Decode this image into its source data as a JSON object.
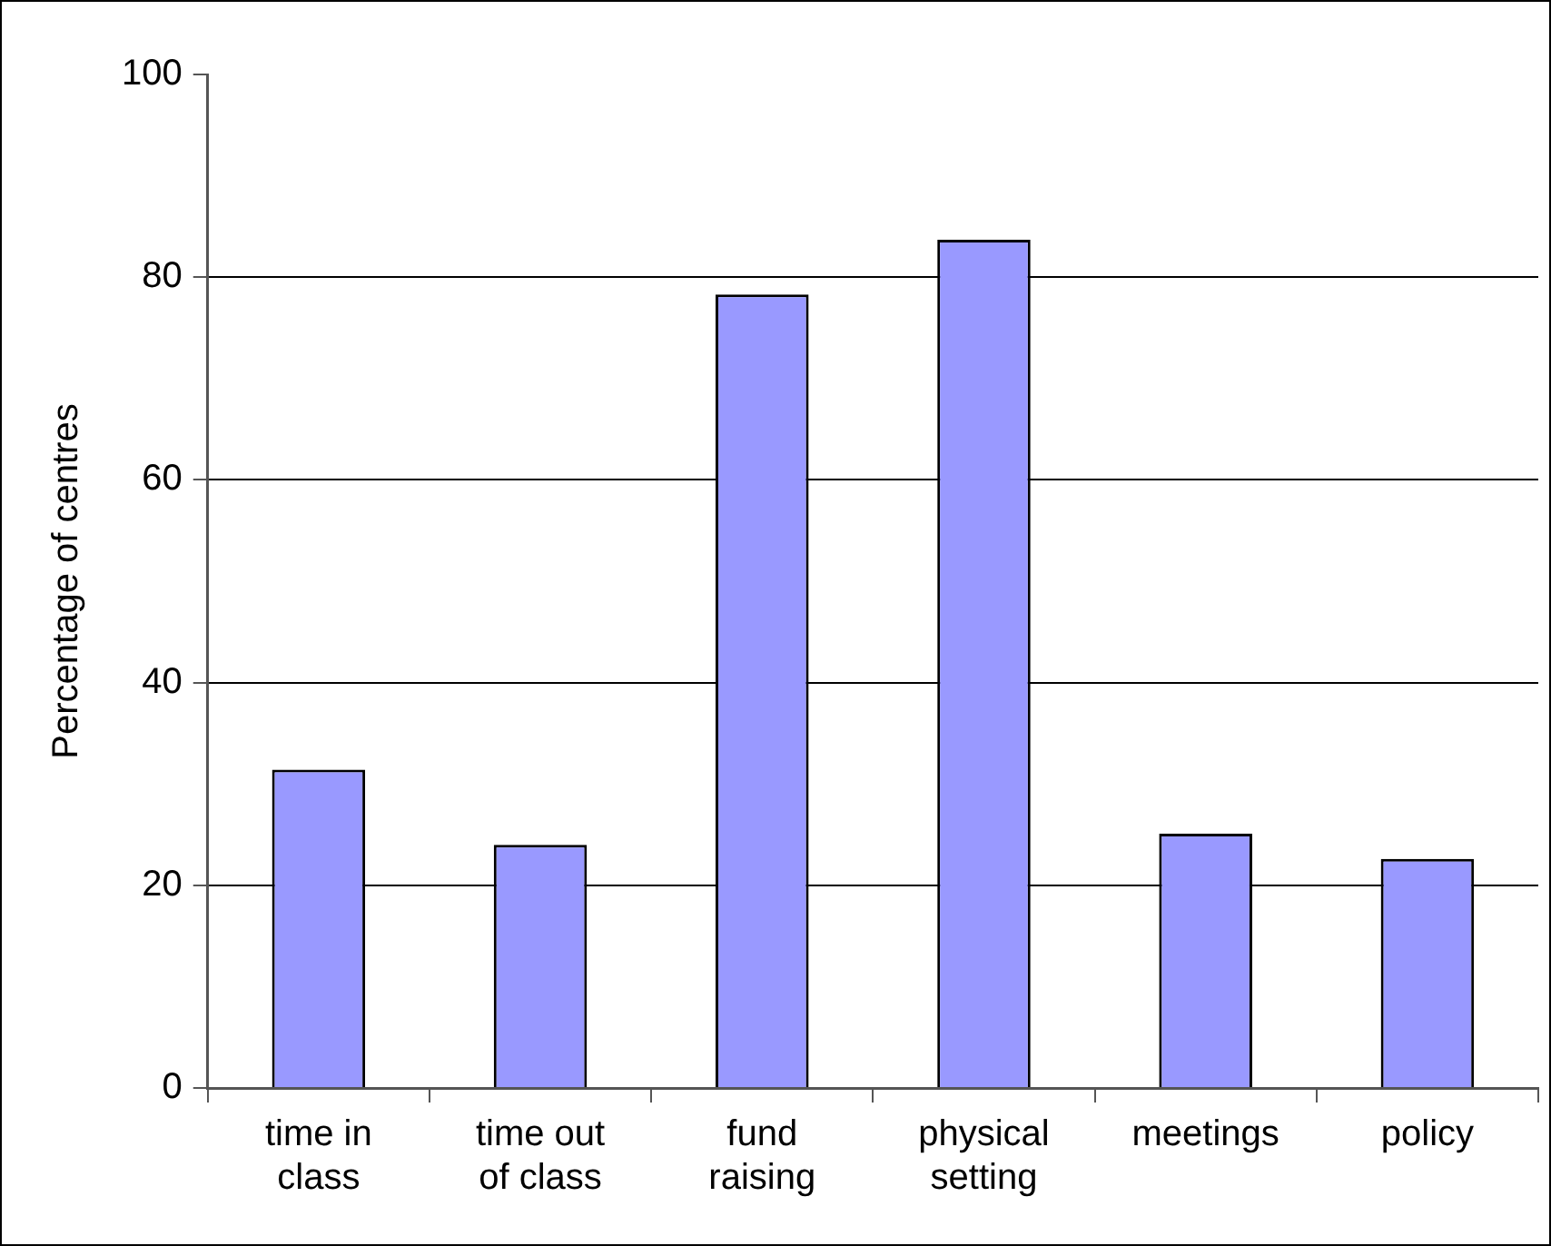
{
  "chart_data": {
    "type": "bar",
    "ylabel": "Percentage of centres",
    "categories": [
      "time in class",
      "time out of class",
      "fund raising",
      "physical setting",
      "meetings",
      "policy"
    ],
    "values": [
      31.4,
      24.0,
      78.3,
      83.7,
      25.1,
      22.6
    ],
    "color": "#9999ff",
    "ylim": [
      0,
      100
    ],
    "yticks": [
      0,
      20,
      40,
      60,
      80,
      100
    ],
    "grid": "y",
    "legend": false
  }
}
